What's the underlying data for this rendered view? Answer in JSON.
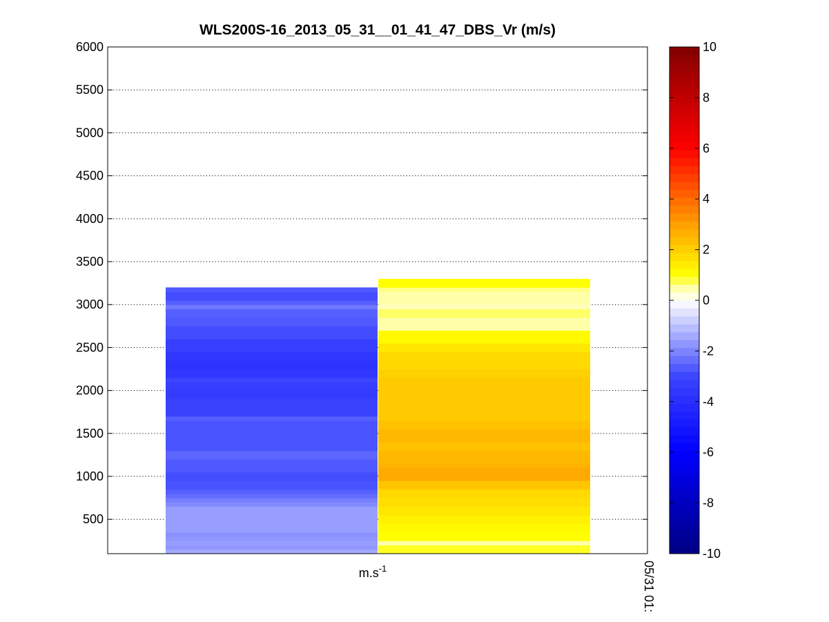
{
  "chart_data": {
    "type": "heatmap",
    "title": "WLS200S-16_2013_05_31__01_41_47_DBS_Vr (m/s)",
    "xlabel": "m.s",
    "xlabel_superscript": "-1",
    "x_end_label": "05/31 01:",
    "ylim": [
      100,
      6000
    ],
    "yticks": [
      500,
      1000,
      1500,
      2000,
      2500,
      3000,
      3500,
      4000,
      4500,
      5000,
      5500,
      6000
    ],
    "grid": "y-dotted",
    "colorbar": {
      "range": [
        -10,
        10
      ],
      "ticks": [
        10,
        8,
        6,
        4,
        2,
        0,
        -2,
        -4,
        -6,
        -8,
        -10
      ],
      "colormap": "blue-white-yellow-red"
    },
    "columns": [
      {
        "height_top": 3200,
        "cells": [
          {
            "y0": 100,
            "y1": 150,
            "v": -1.4
          },
          {
            "y0": 150,
            "y1": 200,
            "v": -1.7
          },
          {
            "y0": 200,
            "y1": 250,
            "v": -1.6
          },
          {
            "y0": 250,
            "y1": 300,
            "v": -1.7
          },
          {
            "y0": 300,
            "y1": 350,
            "v": -1.8
          },
          {
            "y0": 350,
            "y1": 650,
            "v": -1.6
          },
          {
            "y0": 650,
            "y1": 700,
            "v": -1.9
          },
          {
            "y0": 700,
            "y1": 750,
            "v": -2.1
          },
          {
            "y0": 750,
            "y1": 800,
            "v": -2.4
          },
          {
            "y0": 800,
            "y1": 850,
            "v": -2.6
          },
          {
            "y0": 850,
            "y1": 950,
            "v": -2.8
          },
          {
            "y0": 950,
            "y1": 1050,
            "v": -2.9
          },
          {
            "y0": 1050,
            "y1": 1200,
            "v": -2.7
          },
          {
            "y0": 1200,
            "y1": 1300,
            "v": -2.5
          },
          {
            "y0": 1300,
            "y1": 1650,
            "v": -2.8
          },
          {
            "y0": 1650,
            "y1": 1700,
            "v": -2.6
          },
          {
            "y0": 1700,
            "y1": 1900,
            "v": -3.1
          },
          {
            "y0": 1900,
            "y1": 2050,
            "v": -3.4
          },
          {
            "y0": 2050,
            "y1": 2100,
            "v": -3.3
          },
          {
            "y0": 2100,
            "y1": 2150,
            "v": -3.0
          },
          {
            "y0": 2150,
            "y1": 2250,
            "v": -3.6
          },
          {
            "y0": 2250,
            "y1": 2350,
            "v": -3.8
          },
          {
            "y0": 2350,
            "y1": 2450,
            "v": -3.6
          },
          {
            "y0": 2450,
            "y1": 2600,
            "v": -3.3
          },
          {
            "y0": 2600,
            "y1": 2750,
            "v": -2.9
          },
          {
            "y0": 2750,
            "y1": 2850,
            "v": -2.7
          },
          {
            "y0": 2850,
            "y1": 2950,
            "v": -2.6
          },
          {
            "y0": 2950,
            "y1": 3000,
            "v": -2.2
          },
          {
            "y0": 3000,
            "y1": 3050,
            "v": -2.6
          },
          {
            "y0": 3050,
            "y1": 3150,
            "v": -2.9
          },
          {
            "y0": 3150,
            "y1": 3200,
            "v": -2.7
          }
        ]
      },
      {
        "height_top": 3300,
        "cells": [
          {
            "y0": 100,
            "y1": 200,
            "v": 0.9
          },
          {
            "y0": 200,
            "y1": 250,
            "v": 0.5
          },
          {
            "y0": 250,
            "y1": 350,
            "v": 1.0
          },
          {
            "y0": 350,
            "y1": 450,
            "v": 1.1
          },
          {
            "y0": 450,
            "y1": 550,
            "v": 1.3
          },
          {
            "y0": 550,
            "y1": 650,
            "v": 1.5
          },
          {
            "y0": 650,
            "y1": 750,
            "v": 1.7
          },
          {
            "y0": 750,
            "y1": 850,
            "v": 1.8
          },
          {
            "y0": 850,
            "y1": 950,
            "v": 2.2
          },
          {
            "y0": 950,
            "y1": 1100,
            "v": 2.8
          },
          {
            "y0": 1100,
            "y1": 1150,
            "v": 2.6
          },
          {
            "y0": 1150,
            "y1": 1300,
            "v": 2.5
          },
          {
            "y0": 1300,
            "y1": 1400,
            "v": 2.3
          },
          {
            "y0": 1400,
            "y1": 1550,
            "v": 2.5
          },
          {
            "y0": 1550,
            "y1": 1650,
            "v": 2.3
          },
          {
            "y0": 1650,
            "y1": 2150,
            "v": 2.1
          },
          {
            "y0": 2150,
            "y1": 2250,
            "v": 2.0
          },
          {
            "y0": 2250,
            "y1": 2450,
            "v": 1.8
          },
          {
            "y0": 2450,
            "y1": 2550,
            "v": 1.5
          },
          {
            "y0": 2550,
            "y1": 2700,
            "v": 1.1
          },
          {
            "y0": 2700,
            "y1": 2850,
            "v": 0.5
          },
          {
            "y0": 2850,
            "y1": 2950,
            "v": 0.7
          },
          {
            "y0": 2950,
            "y1": 3000,
            "v": 0.4
          },
          {
            "y0": 3000,
            "y1": 3150,
            "v": 0.5
          },
          {
            "y0": 3150,
            "y1": 3200,
            "v": 0.6
          },
          {
            "y0": 3200,
            "y1": 3300,
            "v": 1.0
          }
        ]
      }
    ]
  }
}
